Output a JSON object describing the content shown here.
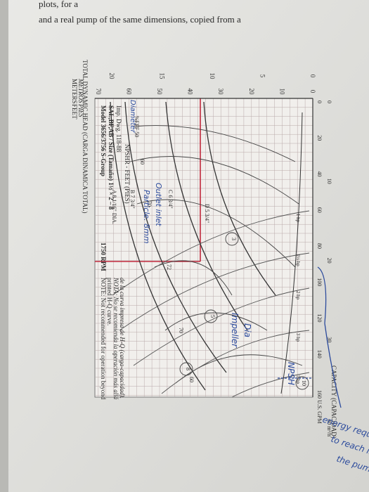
{
  "page_text": {
    "line1": "plots, for a",
    "line2": "and a real pump of the same dimensions, copied from a"
  },
  "chart": {
    "axis_title": "TOTAL DYNAMIC HEAD (CARGA DINAMICA TOTAL)",
    "model": [
      "Model 3656/3756 S-Group",
      "SAL,BF,AB / Size (Tamaño) 1½ × 2 – 8",
      "Imp. Dwg. 118-88"
    ],
    "rpm": "1750 RPM",
    "note": [
      "NOTE: Not recommended for operation beyond",
      "printed H-Q curve.",
      "NOTA: No se recomienda la operación más allá",
      "de la curva impresa de H-Q (carga-capacidad)."
    ],
    "head_units": [
      "METERS",
      "METROS",
      "FEET",
      "PIES"
    ],
    "feet_ticks": [
      "0",
      "10",
      "20",
      "30",
      "40",
      "50",
      "60",
      "70"
    ],
    "meter_ticks": [
      "0",
      "5",
      "10",
      "15",
      "20"
    ],
    "gpm_ticks": [
      "0",
      "20",
      "40",
      "60",
      "80",
      "100",
      "120",
      "140",
      "160 U.S. GPM"
    ],
    "m3h_ticks": [
      "0",
      "10",
      "20",
      "30",
      "40 m³/h"
    ],
    "capacity_title": "CAPACITY (CAPACIDAD)",
    "npsh_label": "NPSHR - FEET (PIES)",
    "impellers": [
      "A 8 1/16\" DIA.",
      "B 7 3/4\"",
      "C 6 3/4\"",
      "D 5 3/4\""
    ],
    "efficiency": [
      "%EFF 50",
      "60",
      "70",
      "72",
      "70",
      "60"
    ],
    "hp": [
      "1 hp",
      "1½ hp",
      "2 hp",
      "3 hp",
      "5 hp"
    ],
    "npsh_values": [
      "3",
      "5",
      "8",
      "10"
    ]
  },
  "handwriting": {
    "particle": "Particle. 8mm",
    "outlet_inlet": "Outlet   inlet",
    "diameter": "Diameter",
    "impeller": "Impeller",
    "dia": "Dia",
    "npsh": "NPSH",
    "note": [
      "energy required",
      "to reach into",
      "the pump"
    ]
  }
}
